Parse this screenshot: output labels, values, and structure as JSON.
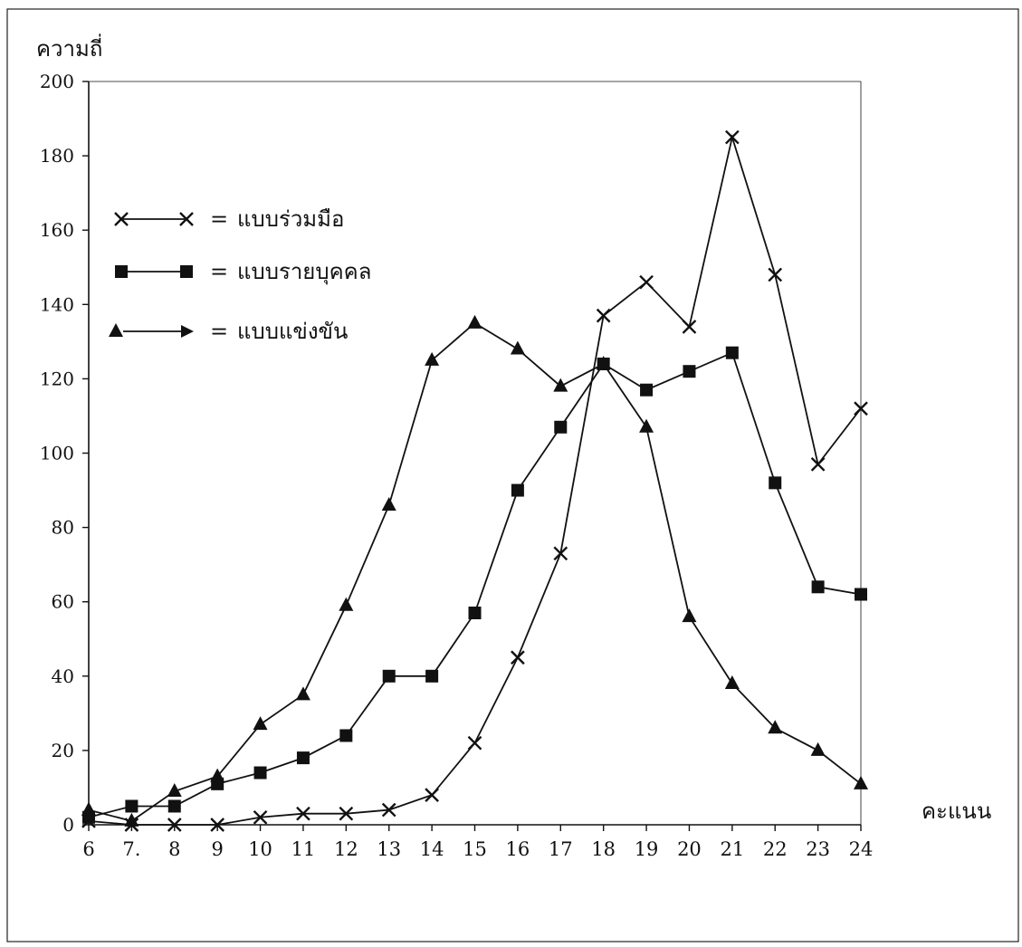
{
  "chart_data": {
    "type": "line",
    "ylabel": "ความถี่",
    "xlabel": "คะแนน",
    "x": [
      6,
      7,
      8,
      9,
      10,
      11,
      12,
      13,
      14,
      15,
      16,
      17,
      18,
      19,
      20,
      21,
      22,
      23,
      24
    ],
    "xlim": [
      6,
      24
    ],
    "ylim": [
      0,
      200
    ],
    "yticks": [
      0,
      20,
      40,
      60,
      80,
      100,
      120,
      140,
      160,
      180,
      200
    ],
    "xtick_labels": [
      "6",
      "7.",
      "8",
      "9",
      "10",
      "11",
      "12",
      "13",
      "14",
      "15",
      "16",
      "17",
      "18",
      "19",
      "20",
      "21",
      "22",
      "23",
      "24"
    ],
    "grid": false,
    "legend_position": "upper-left",
    "series": [
      {
        "name": "แบบร่วมมือ",
        "marker": "x",
        "values": [
          1,
          0,
          0,
          0,
          2,
          3,
          3,
          4,
          8,
          22,
          45,
          73,
          137,
          146,
          134,
          185,
          148,
          97,
          112
        ]
      },
      {
        "name": "แบบรายบุคคล",
        "marker": "square",
        "values": [
          2,
          5,
          5,
          11,
          14,
          18,
          24,
          40,
          40,
          57,
          90,
          107,
          124,
          117,
          122,
          127,
          92,
          64,
          62
        ]
      },
      {
        "name": "แบบแข่งขัน",
        "marker": "triangle",
        "values": [
          4,
          1,
          9,
          13,
          27,
          35,
          59,
          86,
          125,
          135,
          128,
          118,
          124,
          107,
          56,
          38,
          26,
          20,
          11
        ]
      }
    ],
    "legend_separator": "="
  }
}
